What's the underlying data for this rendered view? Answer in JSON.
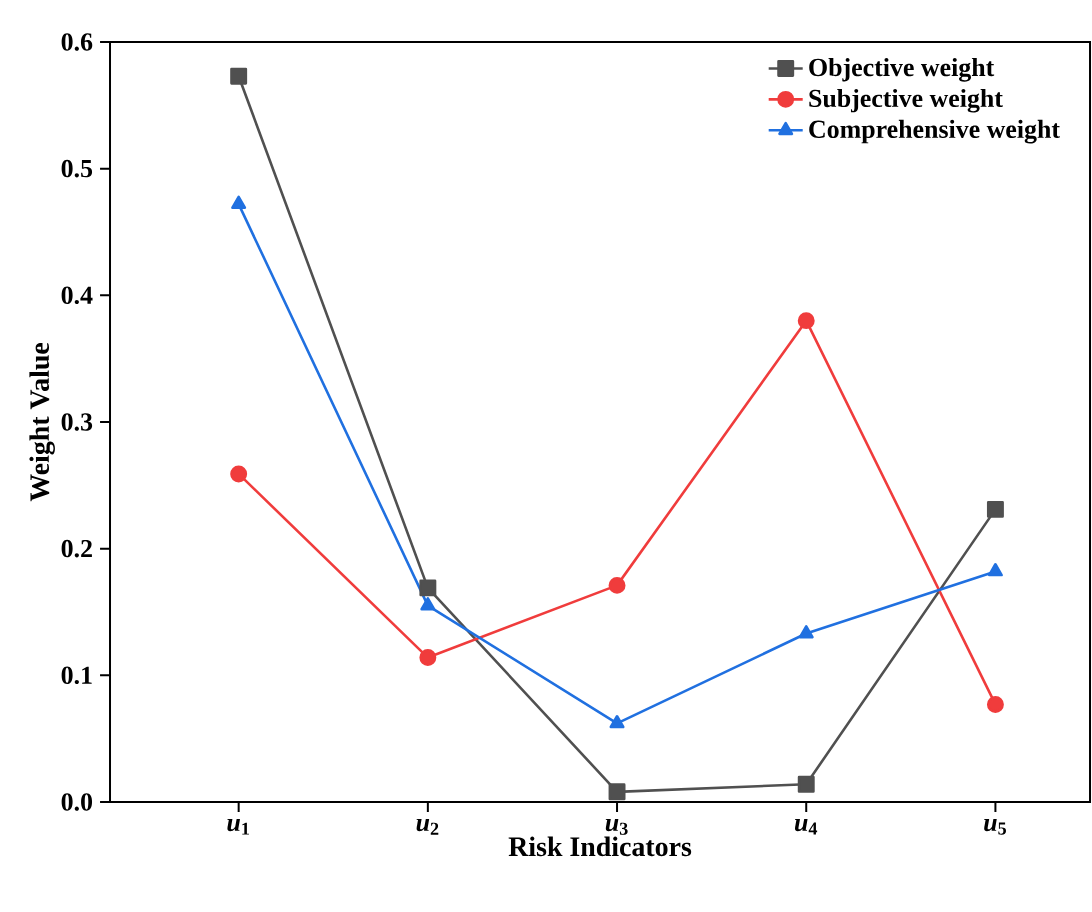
{
  "chart_data": {
    "type": "line",
    "xlabel": "Risk Indicators",
    "ylabel": "Weight Value",
    "categories": [
      "*u*$_{1}$",
      "*u*$_{2}$",
      "*u*$_{3}$",
      "*u*$_{4}$",
      "*u*$_{5}$"
    ],
    "ylim": [
      0,
      0.6
    ],
    "yticks": [
      {
        "value": 0,
        "label": "0.0"
      },
      0.1,
      0.2,
      0.3,
      0.4,
      0.5,
      0.6
    ],
    "legend": "top right",
    "grid": false,
    "line_style": "solid",
    "series": [
      {
        "name": "Objective weight",
        "color": "#505050",
        "marker": "square",
        "values": [
          0.573,
          0.169,
          0.008,
          0.014,
          0.231
        ]
      },
      {
        "name": "Subjective weight",
        "color": "#f03c3c",
        "marker": "circle",
        "values": [
          0.259,
          0.114,
          0.171,
          0.38,
          0.077
        ]
      },
      {
        "name": "Comprehensive weight",
        "color": "#2070e0",
        "marker": "triangle",
        "values": [
          0.472,
          0.155,
          0.062,
          0.133,
          0.182
        ]
      }
    ]
  }
}
